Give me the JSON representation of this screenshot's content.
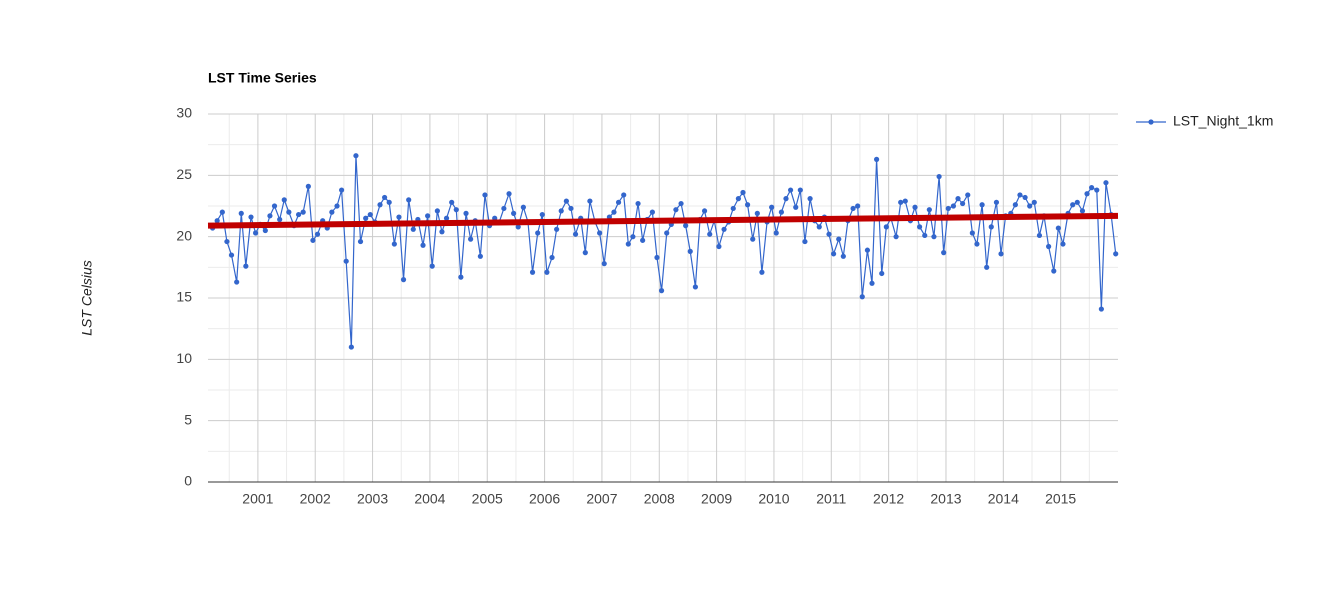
{
  "chart_data": {
    "type": "line",
    "title": "LST  Time Series",
    "y_label": "LST Celsius",
    "xlim": [
      2000.13,
      2016.0
    ],
    "xticks": [
      2001,
      2002,
      2003,
      2004,
      2005,
      2006,
      2007,
      2008,
      2009,
      2010,
      2011,
      2012,
      2013,
      2014,
      2015
    ],
    "minor_xticks": [
      2000.5,
      2001.5,
      2002.5,
      2003.5,
      2004.5,
      2005.5,
      2006.5,
      2007.5,
      2008.5,
      2009.5,
      2010.5,
      2011.5,
      2012.5,
      2013.5,
      2014.5,
      2015.5
    ],
    "ylim": [
      0,
      30
    ],
    "yticks": [
      0,
      5,
      10,
      15,
      20,
      25,
      30
    ],
    "minor_yticks": [
      2.5,
      7.5,
      12.5,
      17.5,
      22.5,
      27.5
    ],
    "grid": true,
    "legend": "right",
    "x": [
      2000.21,
      2000.29,
      2000.38,
      2000.46,
      2000.54,
      2000.63,
      2000.71,
      2000.79,
      2000.88,
      2000.96,
      2001.04,
      2001.13,
      2001.21,
      2001.29,
      2001.38,
      2001.46,
      2001.54,
      2001.63,
      2001.71,
      2001.79,
      2001.88,
      2001.96,
      2002.04,
      2002.13,
      2002.21,
      2002.29,
      2002.38,
      2002.46,
      2002.54,
      2002.63,
      2002.71,
      2002.79,
      2002.88,
      2002.96,
      2003.04,
      2003.13,
      2003.21,
      2003.29,
      2003.38,
      2003.46,
      2003.54,
      2003.63,
      2003.71,
      2003.79,
      2003.88,
      2003.96,
      2004.04,
      2004.13,
      2004.21,
      2004.29,
      2004.38,
      2004.46,
      2004.54,
      2004.63,
      2004.71,
      2004.79,
      2004.88,
      2004.96,
      2005.04,
      2005.13,
      2005.21,
      2005.29,
      2005.38,
      2005.46,
      2005.54,
      2005.63,
      2005.71,
      2005.79,
      2005.88,
      2005.96,
      2006.04,
      2006.13,
      2006.21,
      2006.29,
      2006.38,
      2006.46,
      2006.54,
      2006.63,
      2006.71,
      2006.79,
      2006.88,
      2006.96,
      2007.04,
      2007.13,
      2007.21,
      2007.29,
      2007.38,
      2007.46,
      2007.54,
      2007.63,
      2007.71,
      2007.79,
      2007.88,
      2007.96,
      2008.04,
      2008.13,
      2008.21,
      2008.29,
      2008.38,
      2008.46,
      2008.54,
      2008.63,
      2008.71,
      2008.79,
      2008.88,
      2008.96,
      2009.04,
      2009.13,
      2009.21,
      2009.29,
      2009.38,
      2009.46,
      2009.54,
      2009.63,
      2009.71,
      2009.79,
      2009.88,
      2009.96,
      2010.04,
      2010.13,
      2010.21,
      2010.29,
      2010.38,
      2010.46,
      2010.54,
      2010.63,
      2010.71,
      2010.79,
      2010.88,
      2010.96,
      2011.04,
      2011.13,
      2011.21,
      2011.29,
      2011.38,
      2011.46,
      2011.54,
      2011.63,
      2011.71,
      2011.79,
      2011.88,
      2011.96,
      2012.04,
      2012.13,
      2012.21,
      2012.29,
      2012.38,
      2012.46,
      2012.54,
      2012.63,
      2012.71,
      2012.79,
      2012.88,
      2012.96,
      2013.04,
      2013.13,
      2013.21,
      2013.29,
      2013.38,
      2013.46,
      2013.54,
      2013.63,
      2013.71,
      2013.79,
      2013.88,
      2013.96,
      2014.04,
      2014.13,
      2014.21,
      2014.29,
      2014.38,
      2014.46,
      2014.54,
      2014.63,
      2014.71,
      2014.79,
      2014.88,
      2014.96,
      2015.04,
      2015.13,
      2015.21,
      2015.29,
      2015.38,
      2015.46,
      2015.54,
      2015.63,
      2015.71,
      2015.79,
      2015.88,
      2015.96
    ],
    "series": [
      {
        "name": "LST_Night_1km",
        "color": "#3366cc",
        "values": [
          20.7,
          21.3,
          22.0,
          19.6,
          18.5,
          16.3,
          21.9,
          17.6,
          21.6,
          20.3,
          21.0,
          20.5,
          21.7,
          22.5,
          21.4,
          23.0,
          22.0,
          20.9,
          21.8,
          22.0,
          24.1,
          19.7,
          20.2,
          21.3,
          20.7,
          22.0,
          22.5,
          23.8,
          18.0,
          11.0,
          26.6,
          19.6,
          21.5,
          21.8,
          21.2,
          22.6,
          23.2,
          22.8,
          19.4,
          21.6,
          16.5,
          23.0,
          20.6,
          21.4,
          19.3,
          21.7,
          17.6,
          22.1,
          20.4,
          21.5,
          22.8,
          22.2,
          16.7,
          21.9,
          19.8,
          21.3,
          18.4,
          23.4,
          20.9,
          21.5,
          21.2,
          22.3,
          23.5,
          21.9,
          20.8,
          22.4,
          21.2,
          17.1,
          20.3,
          21.8,
          17.1,
          18.3,
          20.6,
          22.1,
          22.9,
          22.3,
          20.2,
          21.5,
          18.7,
          22.9,
          21.2,
          20.3,
          17.8,
          21.6,
          22.0,
          22.8,
          23.4,
          19.4,
          20.0,
          22.7,
          19.7,
          21.4,
          22.0,
          18.3,
          15.6,
          20.3,
          21.0,
          22.2,
          22.7,
          20.9,
          18.8,
          15.9,
          21.4,
          22.1,
          20.2,
          21.3,
          19.2,
          20.6,
          21.2,
          22.3,
          23.1,
          23.6,
          22.6,
          19.8,
          21.9,
          17.1,
          21.2,
          22.4,
          20.3,
          22.0,
          23.1,
          23.8,
          22.4,
          23.8,
          19.6,
          23.1,
          21.3,
          20.8,
          21.6,
          20.2,
          18.6,
          19.8,
          18.4,
          21.3,
          22.3,
          22.5,
          15.1,
          18.9,
          16.2,
          26.3,
          17.0,
          20.8,
          21.5,
          20.0,
          22.8,
          22.9,
          21.3,
          22.4,
          20.8,
          20.1,
          22.2,
          20.0,
          24.9,
          18.7,
          22.3,
          22.5,
          23.1,
          22.7,
          23.4,
          20.3,
          19.4,
          22.6,
          17.5,
          20.8,
          22.8,
          18.6,
          21.7,
          21.9,
          22.6,
          23.4,
          23.2,
          22.5,
          22.8,
          20.1,
          21.7,
          19.2,
          17.2,
          20.7,
          19.4,
          21.9,
          22.6,
          22.8,
          22.1,
          23.5,
          24.0,
          23.8,
          14.1,
          24.4,
          21.8,
          18.6
        ]
      }
    ],
    "trendline": {
      "x": [
        2000.13,
        2016.0
      ],
      "values": [
        20.9,
        21.7
      ],
      "color": "#c00000"
    }
  }
}
